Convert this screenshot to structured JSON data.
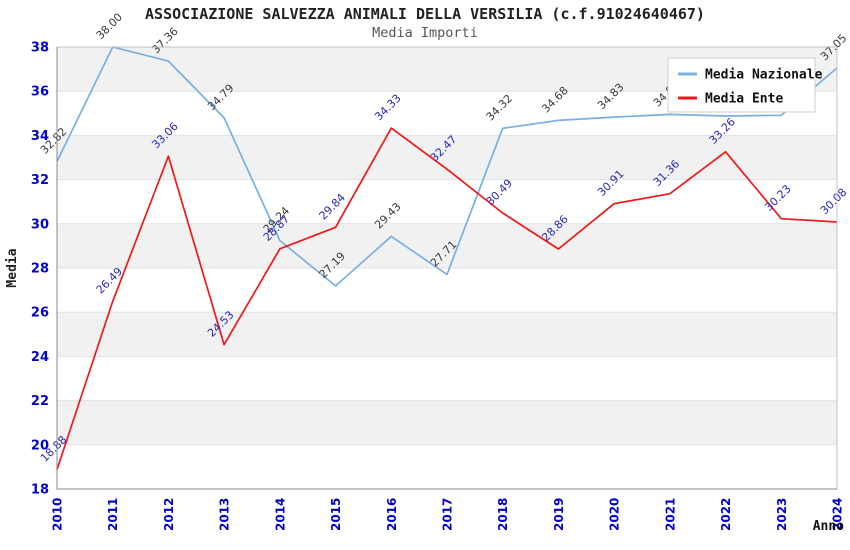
{
  "header": {
    "title": "ASSOCIAZIONE SALVEZZA ANIMALI DELLA VERSILIA (c.f.91024640467)",
    "subtitle": "Media Importi"
  },
  "chart_data": {
    "type": "line",
    "title": "ASSOCIAZIONE SALVEZZA ANIMALI DELLA VERSILIA (c.f.91024640467)",
    "subtitle": "Media Importi",
    "xlabel": "Anno",
    "ylabel": "Media",
    "categories": [
      "2010",
      "2011",
      "2012",
      "2013",
      "2014",
      "2015",
      "2016",
      "2017",
      "2018",
      "2019",
      "2020",
      "2021",
      "2022",
      "2023",
      "2024"
    ],
    "ylim": [
      18,
      38
    ],
    "ytick_step": 2,
    "grid": "horizontal-bands-alternating",
    "band_color": "#f1f1f1",
    "tick_label_color": "#0202cc",
    "legend_position": "top-right",
    "series": [
      {
        "name": "Media Nazionale",
        "color": "#79afe1",
        "label_color": "#3a3a3a",
        "values": [
          32.82,
          38.0,
          37.36,
          34.79,
          29.24,
          27.19,
          29.43,
          27.71,
          34.32,
          34.68,
          34.83,
          34.95,
          34.88,
          34.91,
          37.05
        ]
      },
      {
        "name": "Media Ente",
        "color": "#f01818",
        "label_color": "#2929b8",
        "values": [
          18.88,
          26.49,
          33.06,
          24.53,
          28.87,
          29.84,
          34.33,
          32.47,
          30.49,
          28.86,
          30.91,
          31.36,
          33.26,
          30.23,
          30.08
        ]
      }
    ]
  }
}
